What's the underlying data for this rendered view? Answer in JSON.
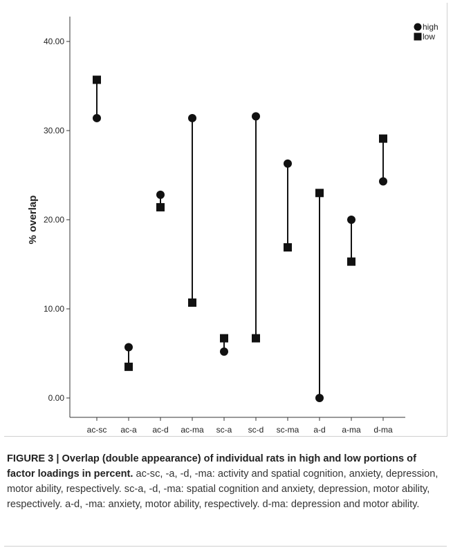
{
  "chart_data": {
    "type": "scatter",
    "categories": [
      "ac-sc",
      "ac-a",
      "ac-d",
      "ac-ma",
      "sc-a",
      "sc-d",
      "sc-ma",
      "a-d",
      "a-ma",
      "d-ma"
    ],
    "series": [
      {
        "name": "high",
        "marker": "circle",
        "values": [
          31.4,
          5.7,
          22.8,
          31.4,
          5.2,
          31.6,
          26.3,
          0.0,
          20.0,
          24.3
        ]
      },
      {
        "name": "low",
        "marker": "square",
        "values": [
          35.7,
          3.5,
          21.4,
          10.7,
          6.7,
          6.7,
          16.9,
          23.0,
          15.3,
          29.1
        ]
      }
    ],
    "xlabel": "",
    "ylabel": "% overlap",
    "ylim": [
      0,
      40
    ],
    "yticks": [
      "0.00",
      "10.00",
      "20.00",
      "30.00",
      "40.00"
    ],
    "legend_position": "top-right",
    "drop_lines": true,
    "grid": false,
    "marker_color": "#111111"
  },
  "caption": {
    "label": "FIGURE 3 | ",
    "bold": "Overlap (double appearance) of individual rats in high and low portions of factor loadings in percent.",
    "text": " ac-sc, -a, -d, -ma: activity and spatial cognition, anxiety, depression, motor ability, respectively. sc-a, -d, -ma: spatial cognition and anxiety, depression, motor ability, respectively. a-d, -ma: anxiety, motor ability, respectively. d-ma: depression and motor ability."
  }
}
